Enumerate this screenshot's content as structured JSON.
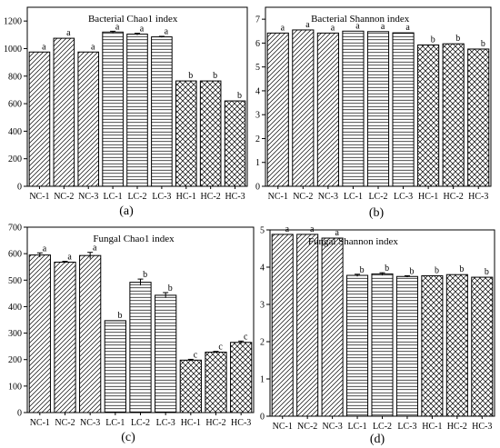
{
  "figure": {
    "panel_labels": [
      "(a)",
      "(b)",
      "(c)",
      "(d)"
    ]
  },
  "chart_data": [
    {
      "type": "bar",
      "title": "Bacterial Chao1 index",
      "categories": [
        "NC-1",
        "NC-2",
        "NC-3",
        "LC-1",
        "LC-2",
        "LC-3",
        "HC-1",
        "HC-2",
        "HC-3"
      ],
      "values": [
        975,
        1075,
        975,
        1120,
        1105,
        1085,
        765,
        765,
        620
      ],
      "errors": [
        0,
        0,
        0,
        6,
        6,
        4,
        0,
        0,
        0
      ],
      "letters": [
        "a",
        "a",
        "a",
        "a",
        "a",
        "a",
        "b",
        "b",
        "b"
      ],
      "ylim": [
        0,
        1300
      ],
      "yticks": [
        0,
        200,
        400,
        600,
        800,
        1000,
        1200
      ],
      "patterns": [
        "diag",
        "diag",
        "diag",
        "horiz",
        "horiz",
        "horiz",
        "cross",
        "cross",
        "cross"
      ]
    },
    {
      "type": "bar",
      "title": "Bacterial Shannon index",
      "categories": [
        "NC-1",
        "NC-2",
        "NC-3",
        "LC-1",
        "LC-2",
        "LC-3",
        "HC-1",
        "HC-2",
        "HC-3"
      ],
      "values": [
        6.42,
        6.55,
        6.42,
        6.5,
        6.48,
        6.43,
        5.92,
        5.97,
        5.75
      ],
      "errors": [
        0,
        0,
        0,
        0,
        0,
        0,
        0,
        0,
        0
      ],
      "letters": [
        "a",
        "a",
        "a",
        "a",
        "a",
        "a",
        "b",
        "b",
        "b"
      ],
      "ylim": [
        0,
        7.5
      ],
      "yticks": [
        0,
        1,
        2,
        3,
        4,
        5,
        6,
        7
      ],
      "patterns": [
        "diag",
        "diag",
        "diag",
        "horiz",
        "horiz",
        "horiz",
        "cross",
        "cross",
        "cross"
      ]
    },
    {
      "type": "bar",
      "title": "Fungal Chao1 index",
      "categories": [
        "NC-1",
        "NC-2",
        "NC-3",
        "LC-1",
        "LC-2",
        "LC-3",
        "HC-1",
        "HC-2",
        "HC-3"
      ],
      "values": [
        595,
        568,
        593,
        347,
        492,
        443,
        198,
        228,
        265
      ],
      "errors": [
        8,
        3,
        12,
        0,
        12,
        10,
        3,
        3,
        5
      ],
      "letters": [
        "a",
        "a",
        "a",
        "b",
        "b",
        "b",
        "c",
        "c",
        "c"
      ],
      "ylim": [
        0,
        700
      ],
      "yticks": [
        0,
        100,
        200,
        300,
        400,
        500,
        600,
        700
      ],
      "patterns": [
        "diag",
        "diag",
        "diag",
        "horiz",
        "horiz",
        "horiz",
        "cross",
        "cross",
        "cross"
      ]
    },
    {
      "type": "bar",
      "title": "Fungal Shannon index",
      "categories": [
        "NC-1",
        "NC-2",
        "NC-3",
        "LC-1",
        "LC-2",
        "LC-3",
        "HC-1",
        "HC-2",
        "HC-3"
      ],
      "values": [
        4.88,
        4.88,
        4.78,
        3.78,
        3.82,
        3.75,
        3.77,
        3.8,
        3.73
      ],
      "errors": [
        0,
        0,
        0,
        0.03,
        0.03,
        0.02,
        0,
        0,
        0
      ],
      "letters": [
        "a",
        "a",
        "a",
        "b",
        "b",
        "b",
        "b",
        "b",
        "b"
      ],
      "ylim": [
        0,
        5
      ],
      "yticks": [
        0,
        1,
        2,
        3,
        4,
        5
      ],
      "patterns": [
        "diag",
        "diag",
        "diag",
        "horiz",
        "horiz",
        "horiz",
        "cross",
        "cross",
        "cross"
      ]
    }
  ]
}
